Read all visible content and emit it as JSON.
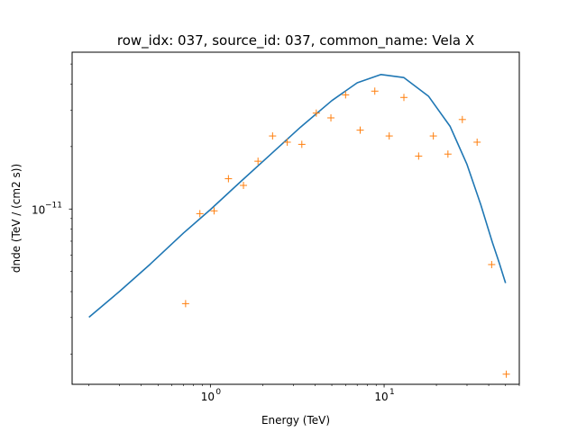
{
  "chart_data": {
    "type": "line",
    "title": "row_idx: 037, source_id: 037, common_name: Vela X",
    "xlabel": "Energy (TeV)",
    "ylabel": "dnde (TeV / (cm2 s))",
    "xscale": "log",
    "yscale": "log",
    "xlim": [
      0.16,
      60
    ],
    "ylim": [
      1.43e-12,
      5.7e-11
    ],
    "grid": false,
    "x_tick_labels": [
      {
        "value": 1,
        "base": "10",
        "exp": "0"
      },
      {
        "value": 10,
        "base": "10",
        "exp": "1"
      }
    ],
    "y_tick_labels": [
      {
        "value": 1e-11,
        "base": "10",
        "exp": "−11"
      }
    ],
    "series": [
      {
        "style": "line",
        "color": "#1f77b4",
        "x": [
          0.2,
          0.3,
          0.45,
          0.7,
          1.0,
          1.5,
          2.2,
          3.3,
          5.0,
          7.0,
          9.6,
          13,
          18,
          24,
          30,
          36,
          42,
          46,
          50
        ],
        "y": [
          3.01e-12,
          4.01e-12,
          5.42e-12,
          7.66e-12,
          9.94e-12,
          1.36e-11,
          1.82e-11,
          2.48e-11,
          3.33e-11,
          4.06e-11,
          4.45e-11,
          4.3e-11,
          3.5e-11,
          2.5e-11,
          1.64e-11,
          1.05e-11,
          6.9e-12,
          5.5e-12,
          4.4e-12
        ]
      },
      {
        "style": "marker",
        "marker": "+",
        "color": "#ff7f0e",
        "x": [
          0.72,
          0.87,
          1.05,
          1.27,
          1.55,
          1.88,
          2.28,
          2.77,
          3.36,
          4.07,
          4.94,
          6.0,
          7.28,
          8.84,
          10.7,
          13.0,
          15.8,
          19.2,
          23.3,
          28.2,
          34.3,
          41.6,
          50.5
        ],
        "y": [
          3.5e-12,
          9.5e-12,
          9.8e-12,
          1.4e-11,
          1.3e-11,
          1.7e-11,
          2.25e-11,
          2.1e-11,
          2.05e-11,
          2.9e-11,
          2.75e-11,
          3.55e-11,
          2.4e-11,
          3.7e-11,
          2.25e-11,
          3.45e-11,
          1.8e-11,
          2.25e-11,
          1.84e-11,
          2.7e-11,
          2.1e-11,
          5.4e-12,
          1.6e-12
        ]
      }
    ]
  }
}
